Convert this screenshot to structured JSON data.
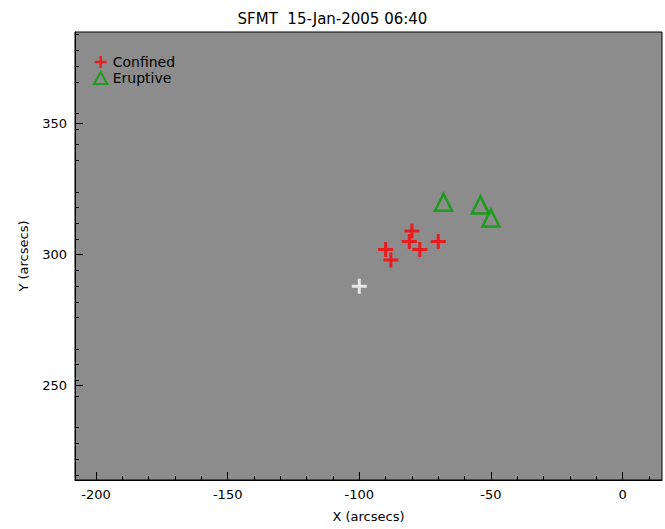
{
  "chart_data": {
    "type": "scatter",
    "title": "SFMT  15-Jan-2005 06:40",
    "x_label": "X (arcsecs)",
    "y_label": "Y (arcsecs)",
    "xlim": [
      -208,
      15
    ],
    "xticks": [
      -200,
      -150,
      -100,
      -50,
      0
    ],
    "ylim": [
      214,
      385
    ],
    "yticks": [
      250,
      300,
      350
    ],
    "grid": false,
    "legend": "upper left",
    "series": [
      {
        "name": "Confined",
        "color": "#ff0000",
        "marker": "cross",
        "x": [
          -90,
          -88,
          -80,
          -81,
          -77,
          -70
        ],
        "y": [
          302,
          298,
          309,
          305,
          302,
          305
        ]
      },
      {
        "name": "Eruptive",
        "color": "#00a000",
        "marker": "triangle",
        "x": [
          -68,
          -54,
          -50
        ],
        "y": [
          320,
          319,
          314
        ]
      },
      {
        "color": "#ffffff",
        "marker": "cross",
        "x": [
          -100
        ],
        "y": [
          288
        ]
      }
    ]
  }
}
